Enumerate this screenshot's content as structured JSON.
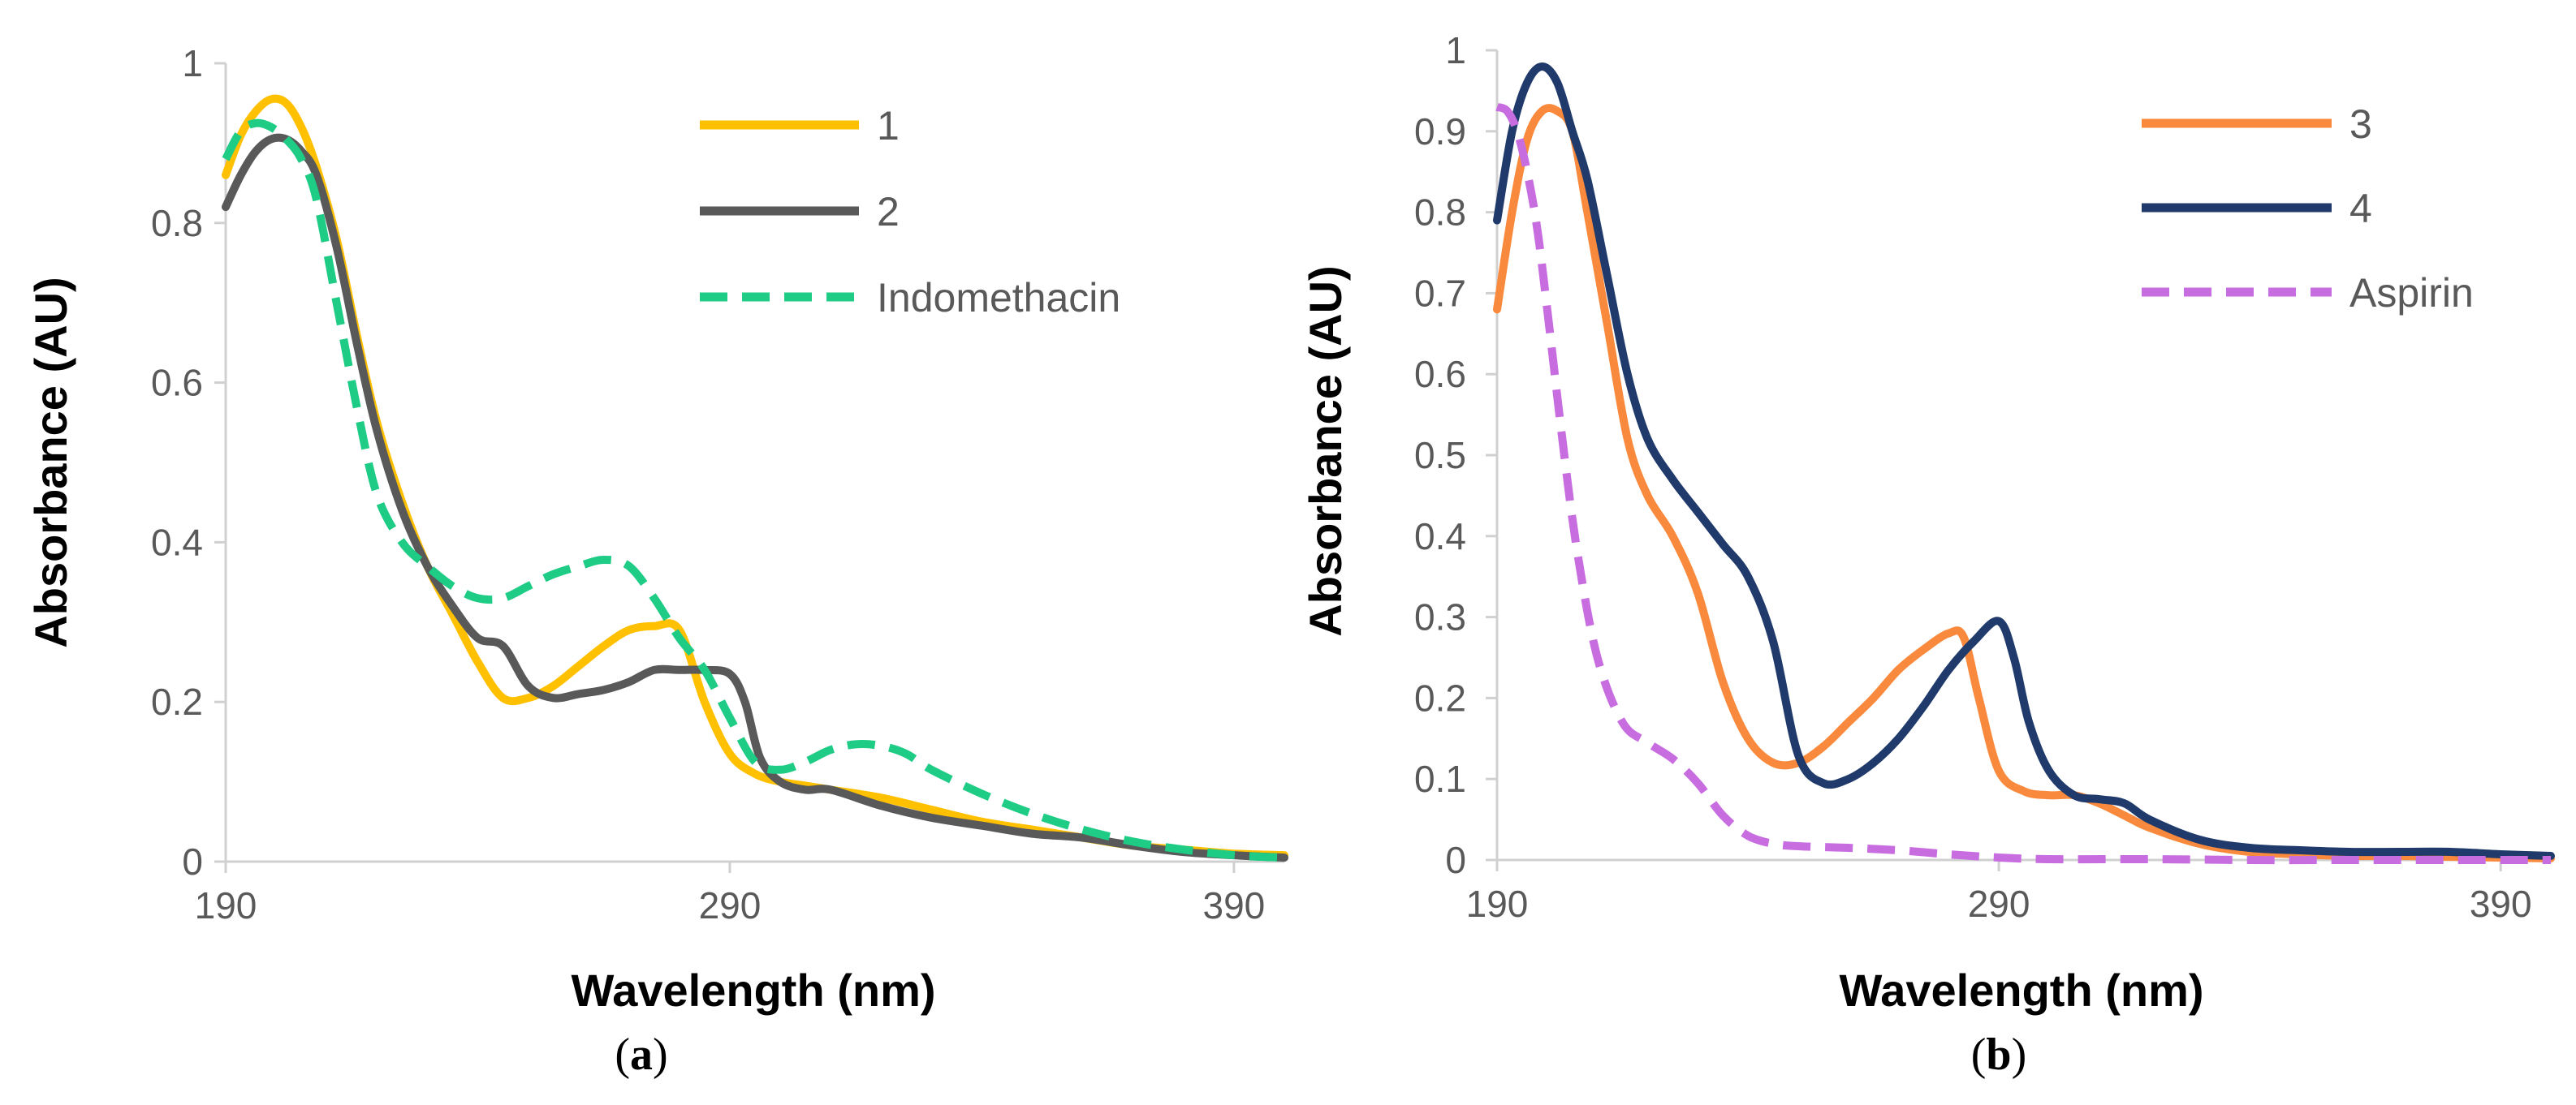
{
  "chart_data": [
    {
      "type": "line",
      "panel": "(a)",
      "panel_letter": "a",
      "title": "",
      "xlabel": "Wavelength (nm)",
      "ylabel": "Absorbance (AU)",
      "xlim": [
        190,
        400
      ],
      "ylim": [
        0,
        1
      ],
      "xticks": [
        190,
        290,
        390
      ],
      "xtick_labels": [
        "190",
        "290",
        "390"
      ],
      "yticks": [
        0,
        0.2,
        0.4,
        0.6,
        0.8,
        1
      ],
      "ytick_labels": [
        "0",
        "0.2",
        "0.4",
        "0.6",
        "0.8",
        "1"
      ],
      "grid": false,
      "legend_position": "top-right",
      "series": [
        {
          "name": "1",
          "color": "#FFC000",
          "dashed": false,
          "x": [
            190,
            193,
            196,
            199,
            202,
            205,
            208,
            212,
            216,
            220,
            225,
            230,
            235,
            240,
            245,
            250,
            255,
            260,
            265,
            270,
            275,
            280,
            285,
            290,
            295,
            300,
            305,
            310,
            320,
            330,
            340,
            350,
            360,
            370,
            380,
            390,
            400
          ],
          "values": [
            0.86,
            0.91,
            0.94,
            0.955,
            0.95,
            0.92,
            0.87,
            0.78,
            0.66,
            0.55,
            0.45,
            0.37,
            0.31,
            0.25,
            0.205,
            0.205,
            0.22,
            0.245,
            0.27,
            0.29,
            0.295,
            0.29,
            0.2,
            0.135,
            0.11,
            0.1,
            0.095,
            0.09,
            0.08,
            0.065,
            0.05,
            0.04,
            0.03,
            0.02,
            0.015,
            0.01,
            0.008
          ]
        },
        {
          "name": "2",
          "color": "#595959",
          "dashed": false,
          "x": [
            190,
            193,
            196,
            199,
            202,
            205,
            208,
            212,
            216,
            220,
            225,
            230,
            235,
            240,
            245,
            250,
            255,
            260,
            265,
            270,
            275,
            280,
            285,
            290,
            293,
            296,
            300,
            305,
            310,
            320,
            330,
            340,
            350,
            360,
            370,
            380,
            390,
            400
          ],
          "values": [
            0.82,
            0.86,
            0.89,
            0.905,
            0.905,
            0.89,
            0.86,
            0.77,
            0.65,
            0.54,
            0.44,
            0.37,
            0.32,
            0.28,
            0.27,
            0.22,
            0.205,
            0.21,
            0.215,
            0.225,
            0.24,
            0.24,
            0.24,
            0.235,
            0.2,
            0.13,
            0.1,
            0.09,
            0.09,
            0.07,
            0.055,
            0.045,
            0.035,
            0.03,
            0.02,
            0.012,
            0.008,
            0.005
          ]
        },
        {
          "name": "Indomethacin",
          "color": "#1ECC85",
          "dashed": true,
          "x": [
            190,
            193,
            196,
            199,
            202,
            205,
            208,
            212,
            216,
            220,
            225,
            230,
            235,
            240,
            245,
            250,
            255,
            260,
            265,
            270,
            275,
            280,
            285,
            290,
            295,
            300,
            305,
            310,
            315,
            320,
            325,
            330,
            340,
            350,
            360,
            370,
            380,
            390,
            400
          ],
          "values": [
            0.88,
            0.915,
            0.925,
            0.92,
            0.905,
            0.88,
            0.83,
            0.7,
            0.57,
            0.46,
            0.4,
            0.37,
            0.345,
            0.33,
            0.33,
            0.345,
            0.36,
            0.37,
            0.378,
            0.37,
            0.33,
            0.28,
            0.24,
            0.18,
            0.125,
            0.115,
            0.125,
            0.14,
            0.147,
            0.145,
            0.135,
            0.115,
            0.085,
            0.06,
            0.04,
            0.025,
            0.015,
            0.008,
            0.005
          ]
        }
      ]
    },
    {
      "type": "line",
      "panel": "(b)",
      "panel_letter": "b",
      "title": "",
      "xlabel": "Wavelength (nm)",
      "ylabel": "Absorbance (AU)",
      "xlim": [
        190,
        400
      ],
      "ylim": [
        0,
        1
      ],
      "xticks": [
        190,
        290,
        390
      ],
      "xtick_labels": [
        "190",
        "290",
        "390"
      ],
      "yticks": [
        0,
        0.1,
        0.2,
        0.3,
        0.4,
        0.5,
        0.6,
        0.7,
        0.8,
        0.9,
        1
      ],
      "ytick_labels": [
        "0",
        "0.1",
        "0.2",
        "0.3",
        "0.4",
        "0.5",
        "0.6",
        "0.7",
        "0.8",
        "0.9",
        "1"
      ],
      "grid": false,
      "legend_position": "top-right",
      "series": [
        {
          "name": "3",
          "color": "#F98A3D",
          "dashed": false,
          "x": [
            190,
            193,
            196,
            199,
            202,
            205,
            208,
            212,
            216,
            220,
            225,
            230,
            235,
            240,
            245,
            250,
            255,
            260,
            265,
            270,
            275,
            280,
            283,
            286,
            290,
            295,
            300,
            305,
            310,
            315,
            320,
            330,
            340,
            350,
            360,
            370,
            380,
            390,
            400
          ],
          "values": [
            0.68,
            0.8,
            0.89,
            0.925,
            0.925,
            0.9,
            0.8,
            0.66,
            0.52,
            0.45,
            0.4,
            0.33,
            0.22,
            0.15,
            0.12,
            0.12,
            0.14,
            0.17,
            0.2,
            0.235,
            0.26,
            0.28,
            0.275,
            0.2,
            0.11,
            0.085,
            0.08,
            0.08,
            0.07,
            0.055,
            0.04,
            0.02,
            0.01,
            0.007,
            0.005,
            0.005,
            0.004,
            0.003,
            0.002
          ]
        },
        {
          "name": "4",
          "color": "#1F3A6B",
          "dashed": false,
          "x": [
            190,
            193,
            196,
            199,
            202,
            205,
            208,
            212,
            216,
            220,
            225,
            230,
            235,
            240,
            245,
            250,
            255,
            260,
            265,
            270,
            275,
            280,
            285,
            290,
            293,
            296,
            300,
            305,
            310,
            315,
            320,
            330,
            340,
            350,
            360,
            370,
            380,
            390,
            400
          ],
          "values": [
            0.79,
            0.9,
            0.96,
            0.98,
            0.96,
            0.9,
            0.84,
            0.72,
            0.6,
            0.52,
            0.47,
            0.43,
            0.39,
            0.35,
            0.27,
            0.13,
            0.095,
            0.1,
            0.12,
            0.15,
            0.19,
            0.235,
            0.27,
            0.295,
            0.25,
            0.17,
            0.11,
            0.08,
            0.075,
            0.07,
            0.05,
            0.025,
            0.015,
            0.012,
            0.01,
            0.01,
            0.01,
            0.007,
            0.005
          ]
        },
        {
          "name": "Aspirin",
          "color": "#C86DE0",
          "dashed": true,
          "x": [
            190,
            192,
            194,
            196,
            198,
            200,
            203,
            206,
            210,
            215,
            220,
            225,
            230,
            235,
            240,
            245,
            250,
            260,
            270,
            280,
            290,
            300,
            320,
            340,
            360,
            380,
            400
          ],
          "values": [
            0.93,
            0.925,
            0.9,
            0.85,
            0.78,
            0.68,
            0.52,
            0.38,
            0.25,
            0.17,
            0.145,
            0.125,
            0.095,
            0.055,
            0.03,
            0.02,
            0.017,
            0.015,
            0.012,
            0.007,
            0.003,
            0.001,
            0.001,
            0.0,
            0.0,
            0.0,
            0.0
          ]
        }
      ]
    }
  ]
}
